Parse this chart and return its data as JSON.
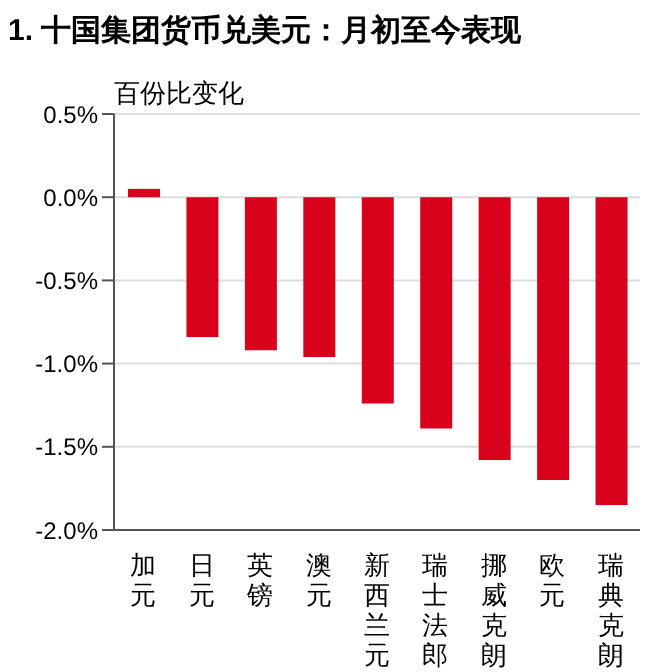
{
  "chart_data": {
    "type": "bar",
    "title": "1. 十国集团货币兑美元：月初至今表现",
    "ylabel": "百份比变化",
    "categories": [
      "加元",
      "日元",
      "英镑",
      "澳元",
      "新西兰元",
      "瑞士法郎",
      "挪威克朗",
      "欧元",
      "瑞典克朗"
    ],
    "values": [
      0.05,
      -0.84,
      -0.92,
      -0.96,
      -1.24,
      -1.39,
      -1.58,
      -1.7,
      -1.85
    ],
    "color": "#d9001b",
    "ylim": [
      -2.0,
      0.5
    ],
    "yticks": [
      {
        "value": -2.0,
        "label": "-2.0%"
      },
      {
        "value": -1.5,
        "label": "-1.5%"
      },
      {
        "value": -1.0,
        "label": "-1.0%"
      },
      {
        "value": -0.5,
        "label": "-0.5%"
      },
      {
        "value": 0,
        "label": "0.0%"
      },
      {
        "value": 0.5,
        "label": "0.5%"
      }
    ],
    "grid": "y",
    "legend": false
  }
}
